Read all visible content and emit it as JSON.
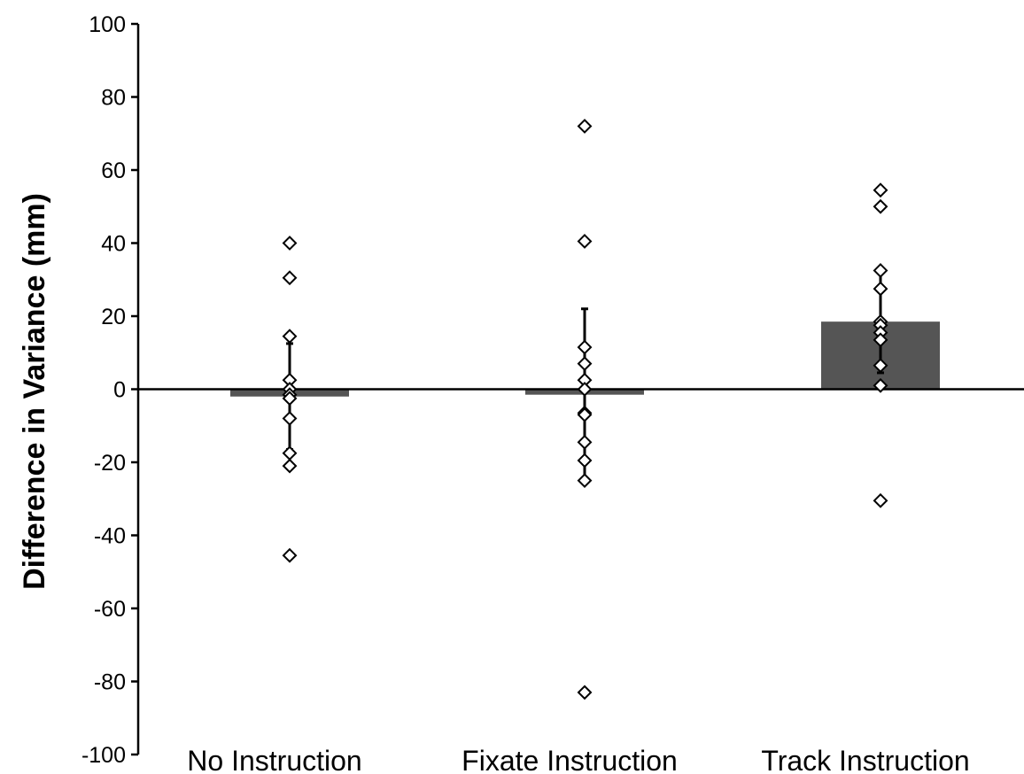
{
  "chart_data": {
    "type": "bar",
    "title": "",
    "xlabel": "",
    "ylabel": "Difference in Variance (mm)",
    "ylim": [
      -100,
      100
    ],
    "yticks": [
      "100",
      "80",
      "60",
      "40",
      "20",
      "0",
      "-20",
      "-40",
      "-60",
      "-80",
      "-100"
    ],
    "categories": [
      "No Instruction",
      "Fixate Instruction",
      "Track Instruction"
    ],
    "series": [
      {
        "values": [
          -2,
          -1.5,
          18.5
        ],
        "error": [
          14.5,
          23.5,
          14
        ]
      }
    ],
    "points": [
      [
        40,
        30.5,
        14.5,
        2.5,
        0,
        -1.5,
        -2.5,
        -8,
        -17.5,
        -21,
        -45.5
      ],
      [
        72,
        40.5,
        11.5,
        7,
        2.5,
        0,
        -6.5,
        -7,
        -14.5,
        -19.5,
        -25,
        -83
      ],
      [
        54.5,
        50,
        32.5,
        27.5,
        18.5,
        17.5,
        15.5,
        13.5,
        6.5,
        1,
        -30.5
      ]
    ],
    "grid": false,
    "legend": "none",
    "colors": {
      "bar": "#555555",
      "axis": "#000000",
      "marker_stroke": "#000000",
      "marker_fill": "#ffffff"
    }
  }
}
